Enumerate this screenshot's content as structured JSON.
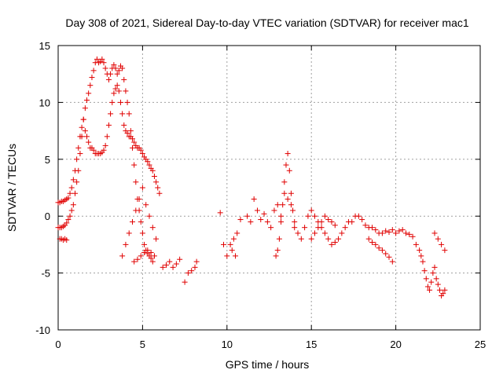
{
  "chart_data": {
    "type": "scatter",
    "title": "Day 308 of 2021, Sidereal Day-to-day VTEC variation (SDTVAR) for receiver mac1",
    "xlabel": "GPS time / hours",
    "ylabel": "SDTVAR / TECUs",
    "xlim": [
      0,
      25
    ],
    "ylim": [
      -10,
      15
    ],
    "xticks": [
      0,
      5,
      10,
      15,
      20,
      25
    ],
    "yticks": [
      -10,
      -5,
      0,
      5,
      10,
      15
    ],
    "xtick_labels": [
      "0",
      "5",
      "10",
      "15",
      "20",
      "25"
    ],
    "ytick_labels": [
      "-10",
      "-5",
      "0",
      "5",
      "10",
      "15"
    ],
    "grid": true,
    "marker": "+",
    "color": "#e00000",
    "series": [
      {
        "name": "mac1",
        "x": [
          0.0,
          0.1,
          0.2,
          0.3,
          0.4,
          0.5,
          0.6,
          0.7,
          0.8,
          0.9,
          1.0,
          1.1,
          1.2,
          1.3,
          1.4,
          1.5,
          1.6,
          1.7,
          1.8,
          1.9,
          2.0,
          2.1,
          2.2,
          2.3,
          2.4,
          2.5,
          2.6,
          2.7,
          2.8,
          2.9,
          3.0,
          3.1,
          3.2,
          3.3,
          3.4,
          3.5,
          3.6,
          3.7,
          3.8,
          3.9,
          4.0,
          4.1,
          4.2,
          4.3,
          4.4,
          4.5,
          4.6,
          4.7,
          4.8,
          4.9,
          5.0,
          5.1,
          5.2,
          5.3,
          5.4,
          5.5,
          5.6,
          5.7,
          5.8,
          5.9,
          6.0,
          0.0,
          0.1,
          0.2,
          0.3,
          0.4,
          0.5,
          0.6,
          0.7,
          0.8,
          0.9,
          1.0,
          1.1,
          1.2,
          1.3,
          1.4,
          1.5,
          1.6,
          1.7,
          1.8,
          1.9,
          2.0,
          2.1,
          2.2,
          2.3,
          2.4,
          2.5,
          2.6,
          2.7,
          2.8,
          2.9,
          3.0,
          3.1,
          3.2,
          3.3,
          3.4,
          3.5,
          3.6,
          3.7,
          3.8,
          3.9,
          4.0,
          4.1,
          4.2,
          4.3,
          4.4,
          4.5,
          4.6,
          4.7,
          4.8,
          4.9,
          5.0,
          5.1,
          5.2,
          5.3,
          5.4,
          5.5,
          5.6,
          0.1,
          0.2,
          0.3,
          0.4,
          0.5,
          3.8,
          4.0,
          4.2,
          4.4,
          4.6,
          4.8,
          5.0,
          5.2,
          5.4,
          5.6,
          5.8,
          4.5,
          4.7,
          4.9,
          5.1,
          5.3,
          5.5,
          5.7,
          6.2,
          6.4,
          6.6,
          6.8,
          7.0,
          7.2,
          7.5,
          7.7,
          7.9,
          8.1,
          8.2,
          9.6,
          9.8,
          10.0,
          10.2,
          10.4,
          10.6,
          10.8,
          10.5,
          10.3,
          11.2,
          11.4,
          11.6,
          11.8,
          12.0,
          12.2,
          12.4,
          12.6,
          12.8,
          13.0,
          13.2,
          13.4,
          13.6,
          13.8,
          14.0,
          14.2,
          14.4,
          14.6,
          12.9,
          13.0,
          13.1,
          13.2,
          13.3,
          13.4,
          13.5,
          13.6,
          13.7,
          13.8,
          13.9,
          14.0,
          14.8,
          15.0,
          15.2,
          15.4,
          15.6,
          15.8,
          16.0,
          16.2,
          16.4,
          16.6,
          16.8,
          17.0,
          15.0,
          15.2,
          15.4,
          15.6,
          15.8,
          16.0,
          16.2,
          16.4,
          17.2,
          17.4,
          17.6,
          17.8,
          18.0,
          18.2,
          18.4,
          18.6,
          18.8,
          19.0,
          19.2,
          19.4,
          19.6,
          19.8,
          20.0,
          20.2,
          20.4,
          20.6,
          20.8,
          21.0,
          21.2,
          18.4,
          18.6,
          18.8,
          19.0,
          19.2,
          19.4,
          19.6,
          19.8,
          21.4,
          21.5,
          21.6,
          21.7,
          21.8,
          21.9,
          22.0,
          22.1,
          22.2,
          22.3,
          22.4,
          22.5,
          22.6,
          22.7,
          22.8,
          22.9,
          22.3,
          22.5,
          22.7,
          22.9
        ],
        "y": [
          1.2,
          1.2,
          1.3,
          1.3,
          1.4,
          1.5,
          1.6,
          2.0,
          2.5,
          3.2,
          4.0,
          5.0,
          6.0,
          7.0,
          7.8,
          8.5,
          7.5,
          7.0,
          6.5,
          6.0,
          6.0,
          5.8,
          5.5,
          5.5,
          5.5,
          5.5,
          5.6,
          5.8,
          6.2,
          7.0,
          8.0,
          9.0,
          10.0,
          10.8,
          11.2,
          11.5,
          11.0,
          10.0,
          9.0,
          8.0,
          7.5,
          7.3,
          7.0,
          7.0,
          6.8,
          6.5,
          6.2,
          6.0,
          6.0,
          5.8,
          5.5,
          5.2,
          5.0,
          4.8,
          4.5,
          4.2,
          4.0,
          3.5,
          3.0,
          2.5,
          2.0,
          -1.0,
          -1.0,
          -1.0,
          -0.9,
          -0.8,
          -0.6,
          -0.3,
          0.0,
          0.5,
          1.0,
          2.0,
          3.0,
          4.0,
          5.5,
          7.0,
          8.5,
          9.5,
          10.2,
          10.8,
          11.5,
          12.2,
          12.8,
          13.5,
          13.8,
          13.5,
          13.6,
          13.8,
          13.5,
          13.0,
          12.5,
          12.0,
          12.5,
          13.0,
          13.3,
          13.0,
          12.5,
          12.8,
          13.2,
          13.0,
          12.0,
          11.0,
          10.0,
          9.0,
          7.5,
          6.0,
          4.5,
          3.0,
          1.5,
          0.5,
          -0.5,
          -1.5,
          -2.5,
          -3.0,
          -3.3,
          -3.5,
          -3.7,
          -4.0,
          -2.0,
          -2.0,
          -2.1,
          -2.0,
          -2.1,
          -3.5,
          -2.5,
          -1.5,
          -0.5,
          0.5,
          1.5,
          2.5,
          1.0,
          0.0,
          -1.0,
          -2.0,
          -4.0,
          -3.8,
          -3.5,
          -3.2,
          -3.0,
          -3.2,
          -3.5,
          -4.5,
          -4.3,
          -4.0,
          -4.5,
          -4.2,
          -3.8,
          -5.8,
          -5.0,
          -4.8,
          -4.5,
          -4.0,
          0.3,
          -2.5,
          -3.5,
          -2.5,
          -2.0,
          -1.5,
          -0.3,
          -3.5,
          -3.0,
          0.0,
          -0.5,
          1.5,
          0.5,
          -0.3,
          0.2,
          -0.5,
          -1.0,
          0.5,
          1.0,
          0.0,
          2.0,
          1.5,
          1.0,
          -0.5,
          -1.5,
          -2.0,
          -1.0,
          -3.5,
          -3.0,
          -2.0,
          -0.5,
          1.0,
          3.0,
          4.5,
          5.5,
          4.0,
          2.0,
          0.5,
          -1.0,
          0.0,
          0.5,
          0.0,
          -0.5,
          -1.0,
          -1.5,
          -2.0,
          -2.5,
          -2.3,
          -2.0,
          -1.5,
          -1.0,
          -2.0,
          -1.5,
          -1.0,
          -0.5,
          0.0,
          -0.3,
          -0.5,
          -0.8,
          -0.5,
          -0.5,
          0.0,
          0.0,
          -0.3,
          -0.8,
          -1.0,
          -1.0,
          -1.2,
          -1.5,
          -1.5,
          -1.3,
          -1.4,
          -1.2,
          -1.5,
          -1.3,
          -1.2,
          -1.5,
          -1.6,
          -1.8,
          -2.5,
          -2.0,
          -2.3,
          -2.5,
          -2.8,
          -3.0,
          -3.3,
          -3.6,
          -4.0,
          -3.0,
          -3.5,
          -4.0,
          -4.8,
          -5.5,
          -6.2,
          -6.5,
          -5.8,
          -5.0,
          -4.5,
          -5.5,
          -6.0,
          -6.5,
          -7.0,
          -6.8,
          -6.5,
          -1.5,
          -2.0,
          -2.5,
          -3.0
        ]
      }
    ]
  }
}
